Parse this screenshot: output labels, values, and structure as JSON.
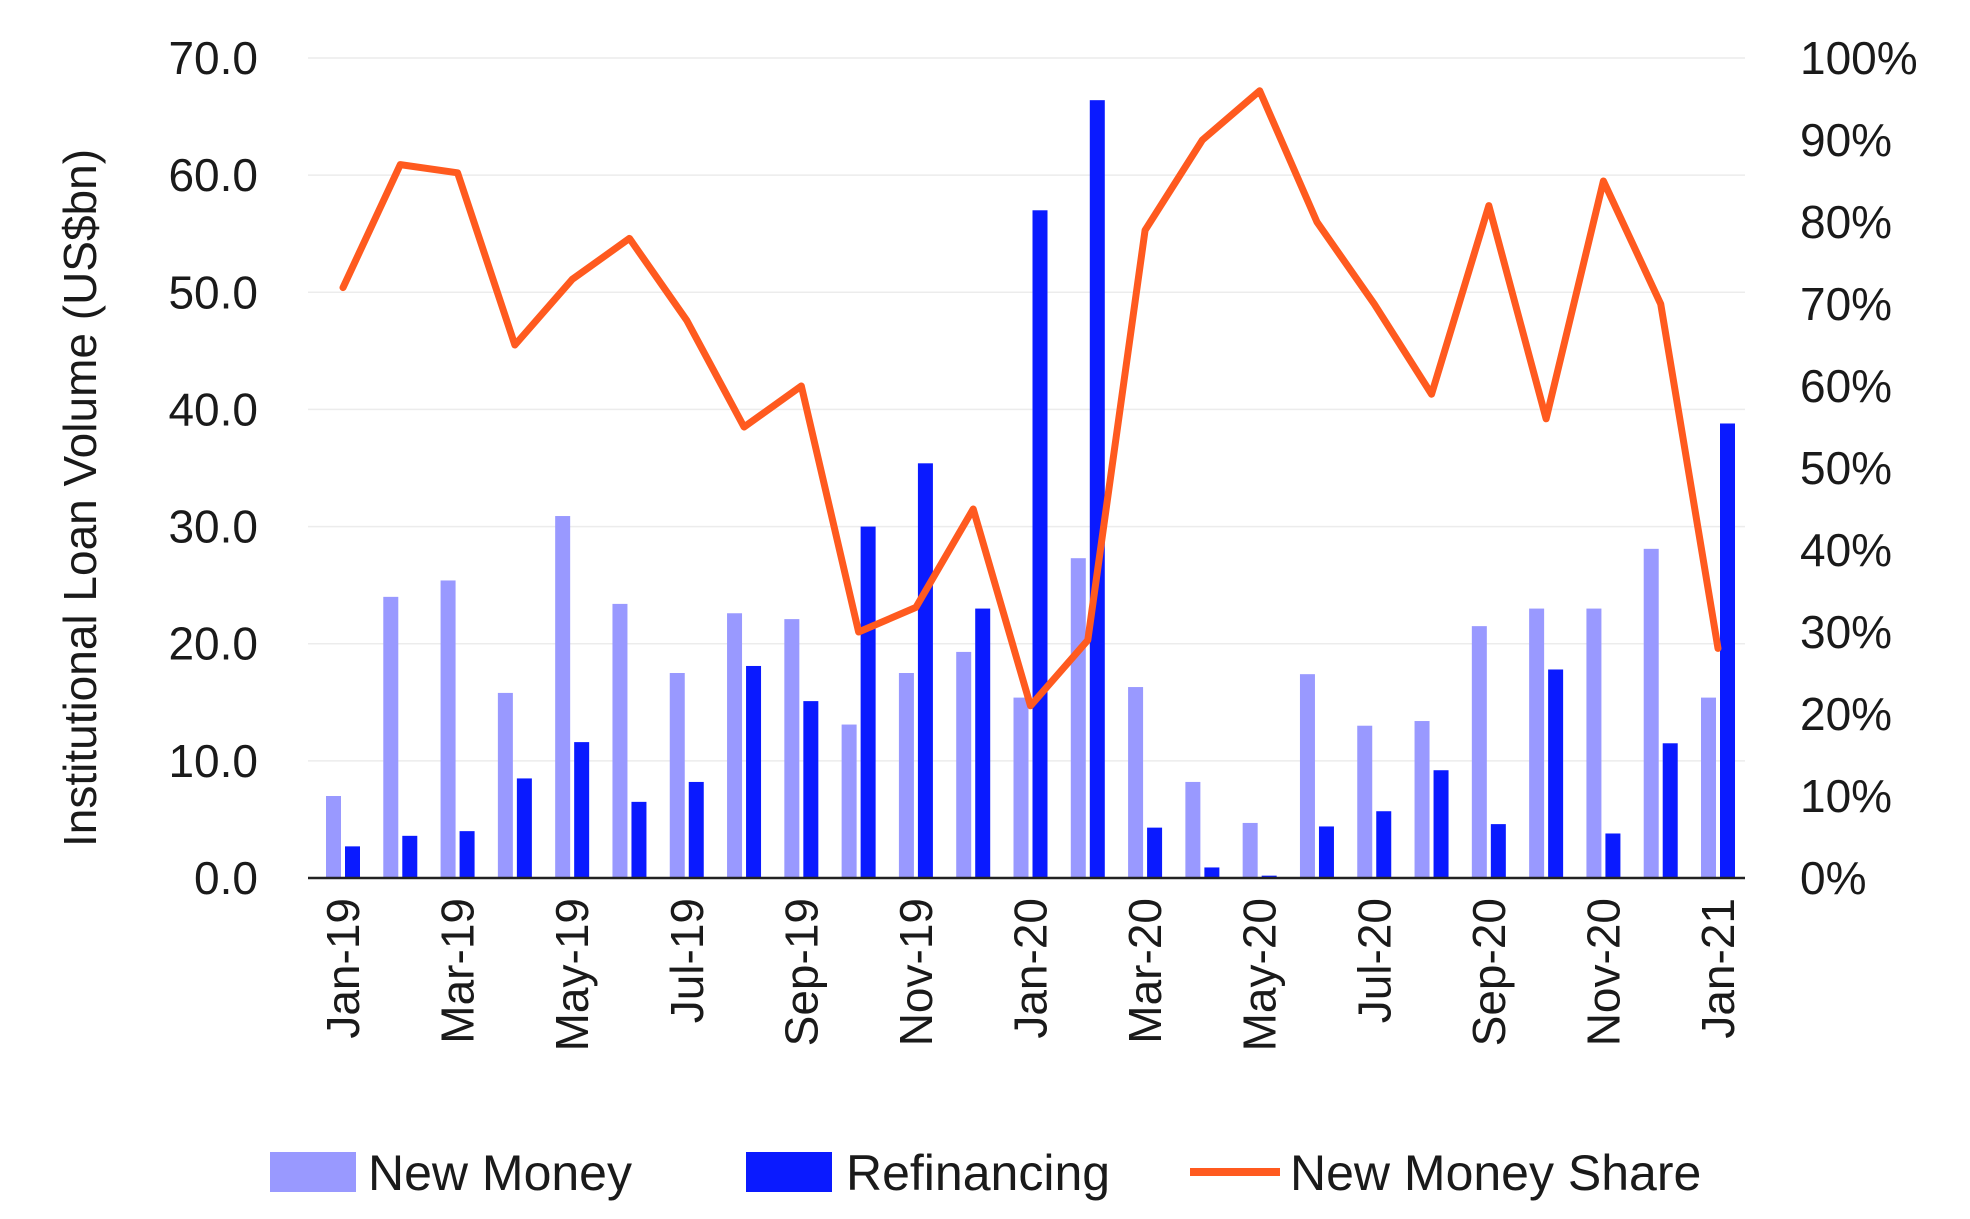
{
  "chart_data": {
    "type": "bar",
    "categories": [
      "Jan-19",
      "Feb-19",
      "Mar-19",
      "Apr-19",
      "May-19",
      "Jun-19",
      "Jul-19",
      "Aug-19",
      "Sep-19",
      "Oct-19",
      "Nov-19",
      "Dec-19",
      "Jan-20",
      "Feb-20",
      "Mar-20",
      "Apr-20",
      "May-20",
      "Jun-20",
      "Jul-20",
      "Aug-20",
      "Sep-20",
      "Oct-20",
      "Nov-20",
      "Dec-20",
      "Jan-21"
    ],
    "x_tick_labels": [
      "Jan-19",
      "",
      "Mar-19",
      "",
      "May-19",
      "",
      "Jul-19",
      "",
      "Sep-19",
      "",
      "Nov-19",
      "",
      "Jan-20",
      "",
      "Mar-20",
      "",
      "May-20",
      "",
      "Jul-20",
      "",
      "Sep-20",
      "",
      "Nov-20",
      "",
      "Jan-21"
    ],
    "series": [
      {
        "name": "New Money",
        "type": "bar",
        "axis": "left",
        "color": "#9999ff",
        "values": [
          7.0,
          24.0,
          25.4,
          15.8,
          30.9,
          23.4,
          17.5,
          22.6,
          22.1,
          13.1,
          17.5,
          19.3,
          15.4,
          27.3,
          16.3,
          8.2,
          4.7,
          17.4,
          13.0,
          13.4,
          21.5,
          23.0,
          23.0,
          28.1,
          15.4
        ]
      },
      {
        "name": "Refinancing",
        "type": "bar",
        "axis": "left",
        "color": "#0a1aff",
        "values": [
          2.7,
          3.6,
          4.0,
          8.5,
          11.6,
          6.5,
          8.2,
          18.1,
          15.1,
          30.0,
          35.4,
          23.0,
          57.0,
          66.4,
          4.3,
          0.9,
          0.2,
          4.4,
          5.7,
          9.2,
          4.6,
          17.8,
          3.8,
          11.5,
          38.8
        ]
      },
      {
        "name": "New Money Share",
        "type": "line",
        "axis": "right",
        "color": "#ff5a1f",
        "values": [
          72,
          87,
          86,
          65,
          73,
          78,
          68,
          55,
          60,
          30,
          33,
          45,
          21,
          29,
          79,
          90,
          96,
          80,
          70,
          59,
          82,
          56,
          85,
          70,
          28
        ]
      }
    ],
    "ylabel": "Institutional Loan Volume (US$bn)",
    "xlabel": "",
    "title": "",
    "ylim": [
      0,
      70
    ],
    "y_ticks": [
      "0.0",
      "10.0",
      "20.0",
      "30.0",
      "40.0",
      "50.0",
      "60.0",
      "70.0"
    ],
    "y2lim": [
      0,
      100
    ],
    "y2_ticks": [
      "0%",
      "10%",
      "20%",
      "30%",
      "40%",
      "50%",
      "60%",
      "70%",
      "80%",
      "90%",
      "100%"
    ],
    "grid": true,
    "legend": "bottom"
  }
}
